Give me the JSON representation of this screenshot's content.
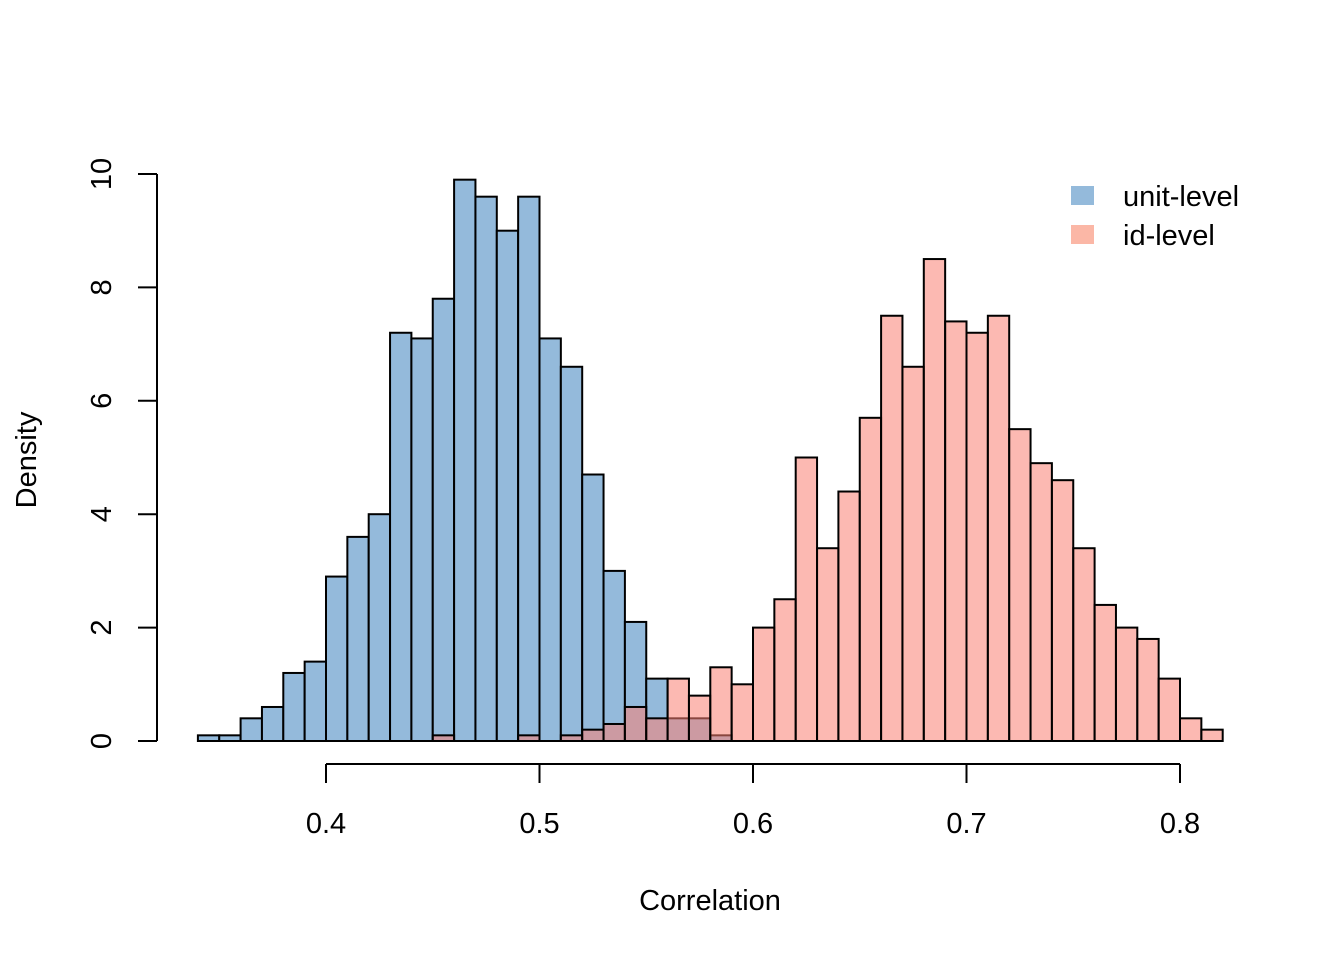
{
  "chart_data": {
    "type": "histogram",
    "xlabel": "Correlation",
    "ylabel": "Density",
    "xlim": [
      0.34,
      0.82
    ],
    "ylim": [
      0,
      10
    ],
    "x_ticks": [
      "0.4",
      "0.5",
      "0.6",
      "0.7",
      "0.8"
    ],
    "x_tick_values": [
      0.4,
      0.5,
      0.6,
      0.7,
      0.8
    ],
    "y_ticks": [
      "0",
      "2",
      "4",
      "6",
      "8",
      "10"
    ],
    "y_tick_values": [
      0,
      2,
      4,
      6,
      8,
      10
    ],
    "bin_width": 0.01,
    "grid": false,
    "legend_position": "top-right",
    "series": [
      {
        "name": "unit-level",
        "color": "#94BADB",
        "bin_start": 0.34,
        "values": [
          0.1,
          0.1,
          0.4,
          0.6,
          1.2,
          1.4,
          2.9,
          3.6,
          4.0,
          7.2,
          7.1,
          7.8,
          9.9,
          9.6,
          9.0,
          9.6,
          7.1,
          6.6,
          4.7,
          3.0,
          2.1,
          1.1,
          0.4,
          0.4,
          0.1
        ]
      },
      {
        "name": "id-level",
        "color": "#FBB7A6",
        "bin_start": 0.45,
        "values": [
          0.1,
          0,
          0,
          0,
          0.1,
          0,
          0.1,
          0.2,
          0.3,
          0.6,
          0.4,
          1.1,
          0.8,
          1.3,
          1.0,
          2.0,
          2.5,
          5.0,
          3.4,
          4.4,
          5.7,
          7.5,
          6.6,
          8.5,
          7.4,
          7.2,
          7.5,
          5.5,
          4.9,
          4.6,
          3.4,
          2.4,
          2.0,
          1.8,
          1.1,
          0.4,
          0.2
        ]
      }
    ]
  }
}
